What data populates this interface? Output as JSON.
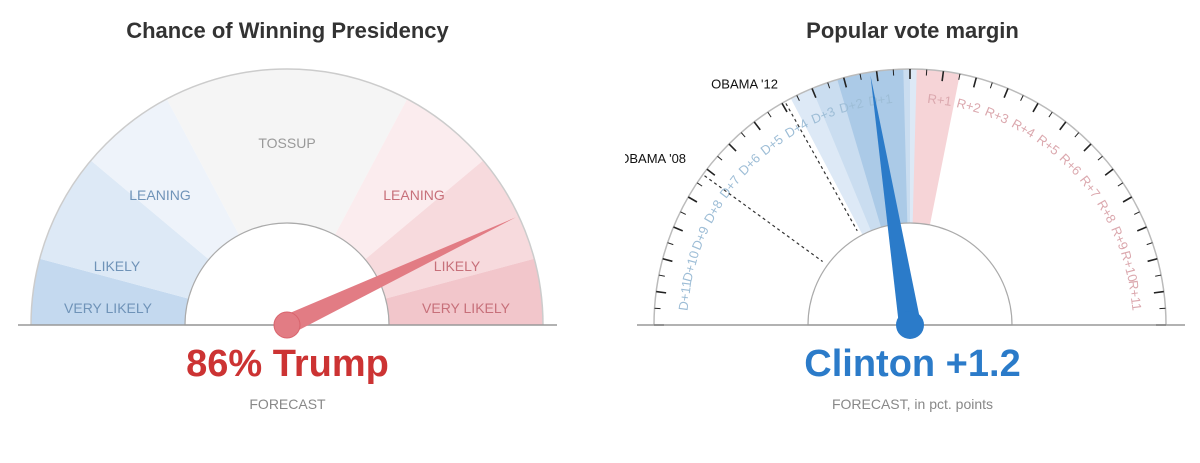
{
  "colors": {
    "dem_strong": "#4a8fd0",
    "dem_needle": "#2b7bc9",
    "rep_needle": "#e27c84",
    "rep_value": "#cc3333",
    "dem_value": "#2b7bc9",
    "dem_label": "#6f93b8",
    "rep_label": "#c7707a",
    "neutral_label": "#999999"
  },
  "chart_data": [
    {
      "type": "gauge",
      "title": "Chance of Winning Presidency",
      "value": 86,
      "unit": "%",
      "leader": "Trump",
      "display_value": "86% Trump",
      "sub_label": "FORECAST",
      "zones": [
        {
          "label": "VERY LIKELY",
          "side": "dem"
        },
        {
          "label": "LIKELY",
          "side": "dem"
        },
        {
          "label": "LEANING",
          "side": "dem"
        },
        {
          "label": "TOSSUP",
          "side": "neutral"
        },
        {
          "label": "LEANING",
          "side": "rep"
        },
        {
          "label": "LIKELY",
          "side": "rep"
        },
        {
          "label": "VERY LIKELY",
          "side": "rep"
        }
      ]
    },
    {
      "type": "gauge",
      "title": "Popular vote margin",
      "value": -1.2,
      "leader": "Clinton",
      "display_value": "Clinton +1.2",
      "sub_label_main": "FORECAST",
      "sub_label_rest": ", in pct. points",
      "range": [
        -12,
        12
      ],
      "dem_ticks": [
        "D+1",
        "D+2",
        "D+3",
        "D+4",
        "D+5",
        "D+6",
        "D+7",
        "D+8",
        "D+9",
        "D+10",
        "D+11"
      ],
      "rep_ticks": [
        "R+1",
        "R+2",
        "R+3",
        "R+4",
        "R+5",
        "R+6",
        "R+7",
        "R+8",
        "R+9",
        "R+10",
        "R+11"
      ],
      "uncertainty_bands": [
        {
          "from": -3.7,
          "to": 1.2,
          "color": "#dbe8f5"
        },
        {
          "from": -3.0,
          "to": 0.0,
          "color": "#c8dcef"
        },
        {
          "from": -2.2,
          "to": -0.2,
          "color": "#a9c8e6"
        }
      ],
      "rep_band": {
        "from": 0.2,
        "to": 1.5
      },
      "reference_lines": [
        {
          "label": "OBAMA '12",
          "value": -3.9
        },
        {
          "label": "OBAMA '08",
          "value": -7.2
        }
      ]
    }
  ]
}
